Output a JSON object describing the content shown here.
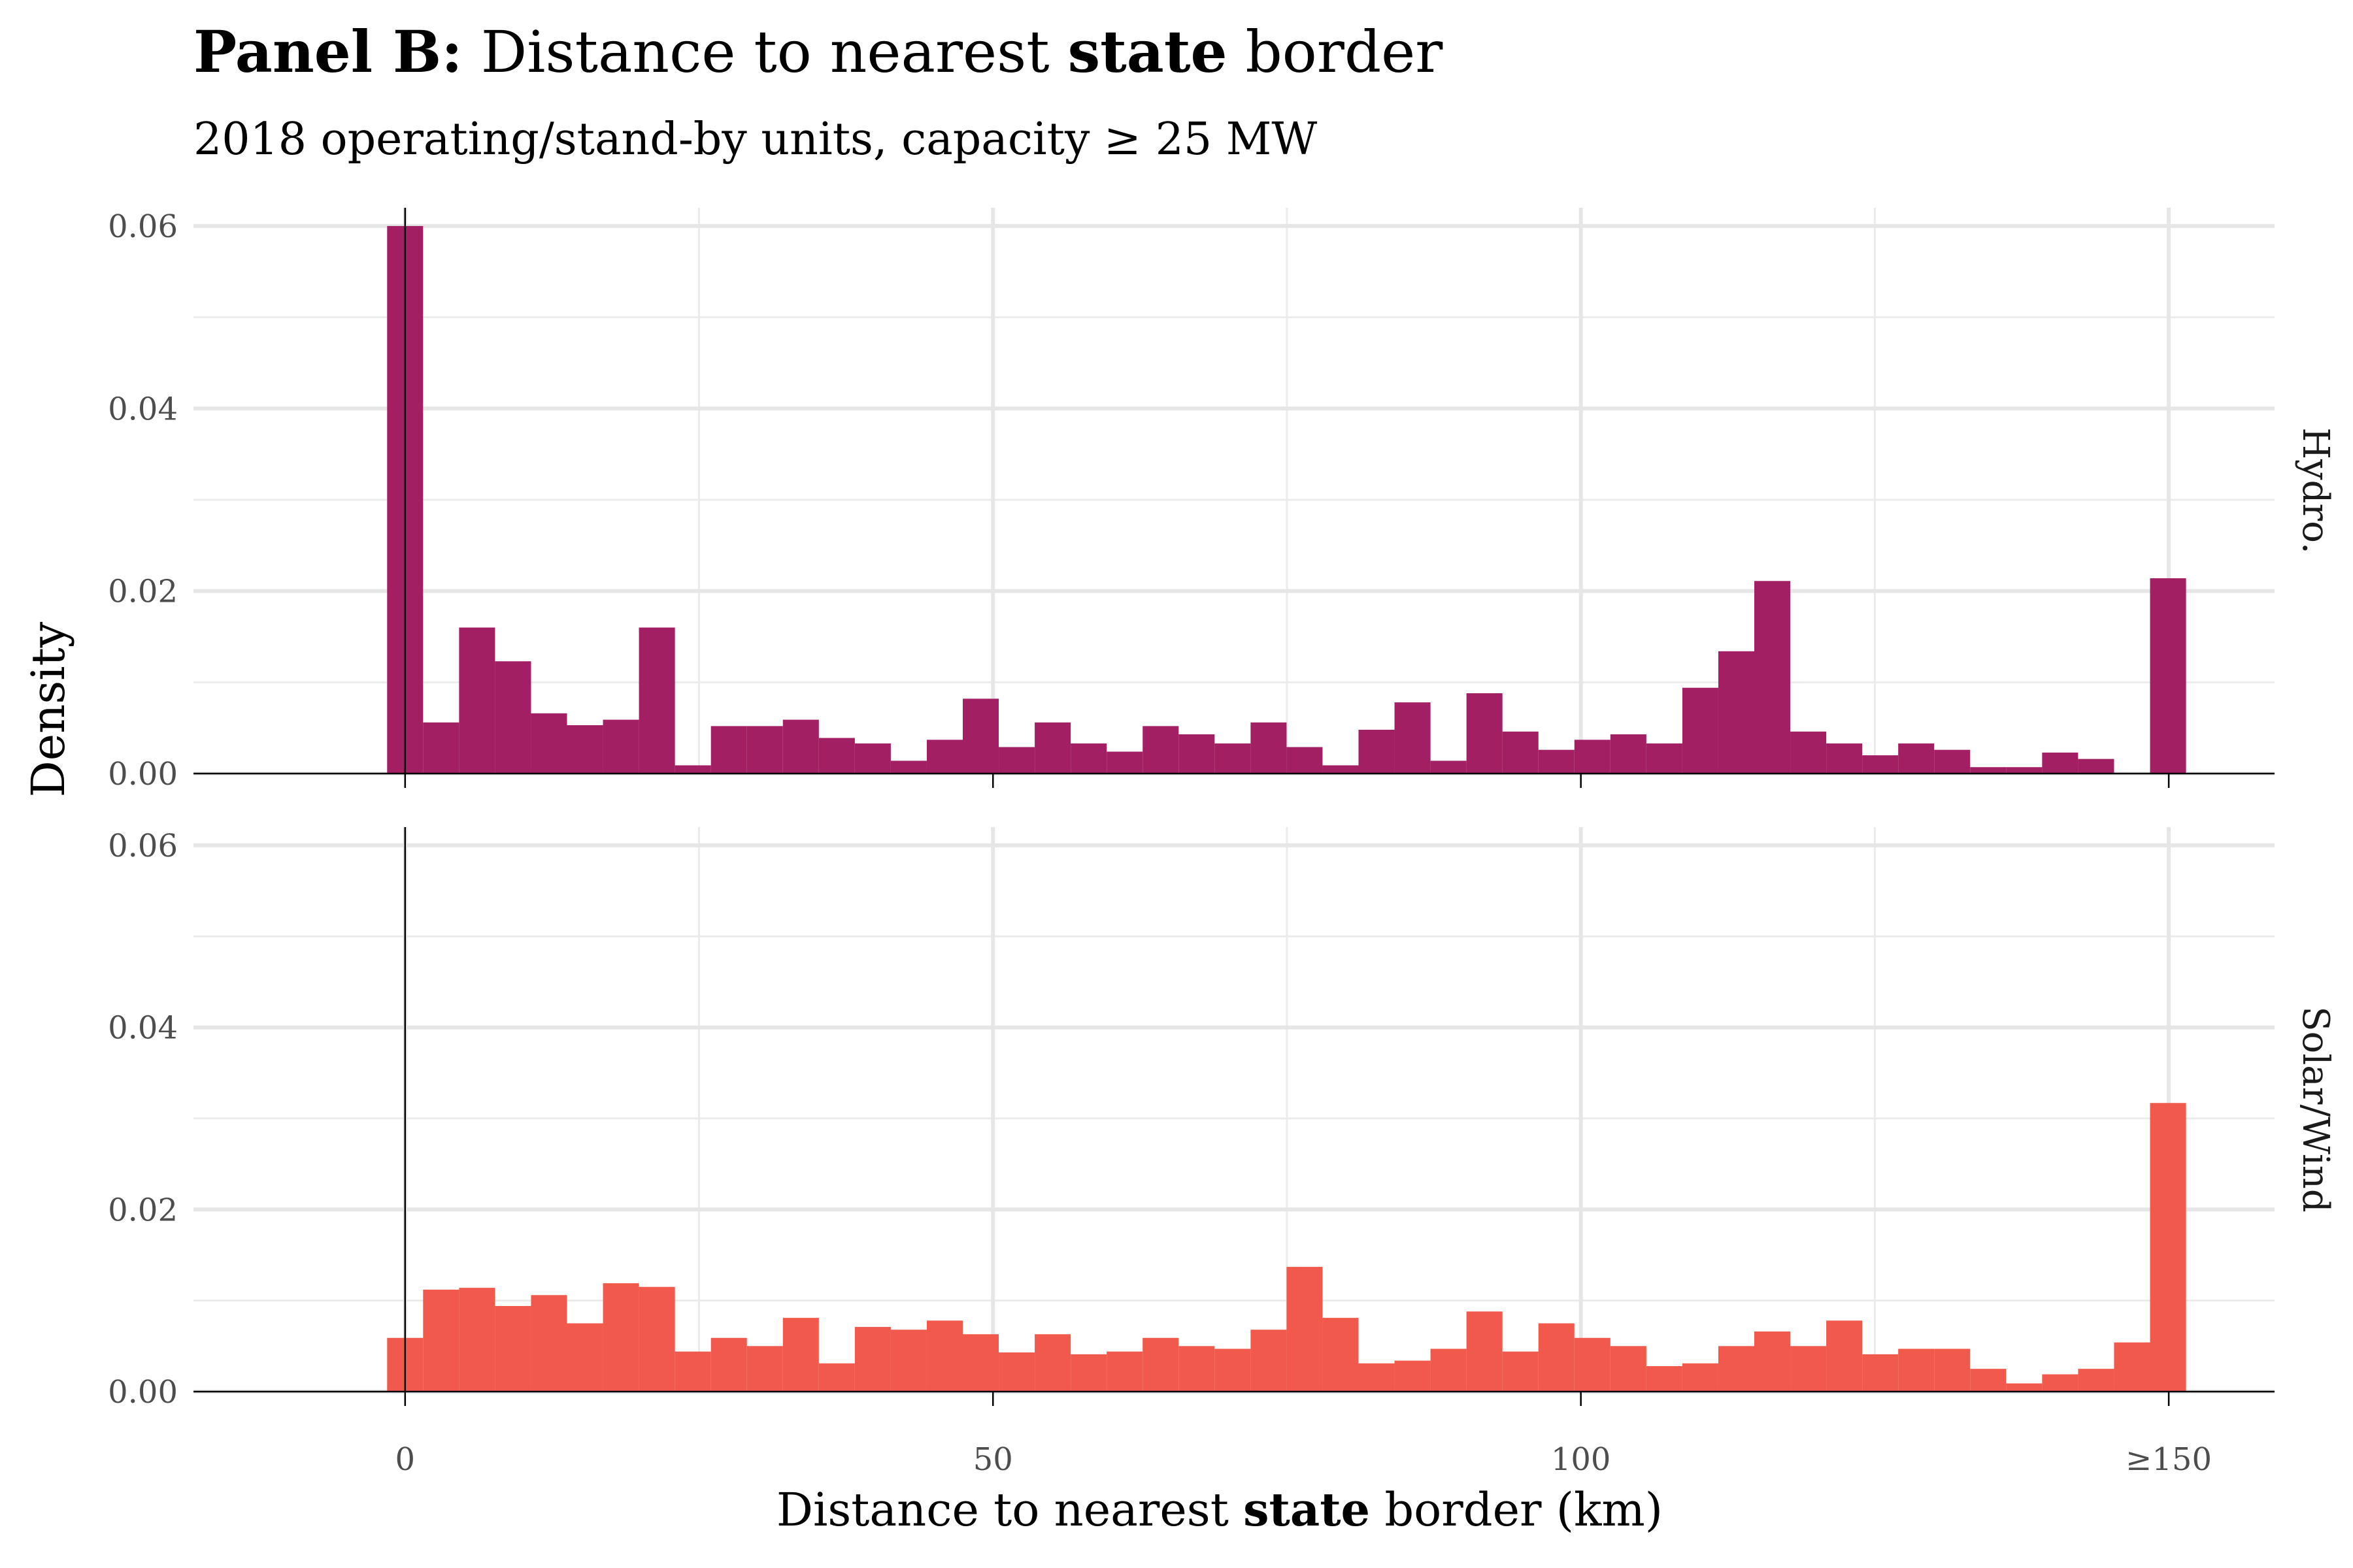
{
  "chart_data": {
    "type": "bar",
    "title": {
      "prefix": "Panel B:",
      "text_before": "Distance to nearest",
      "emphasis": "state",
      "text_after": "border"
    },
    "subtitle": "2018 operating/stand-by units, capacity  ≥ 25 MW",
    "xlabel": {
      "text_before": "Distance to nearest",
      "emphasis": "state",
      "text_after": "border (km)"
    },
    "ylabel": "Density",
    "xlim": [
      -18,
      159
    ],
    "ylim": [
      0,
      0.062
    ],
    "x_ticks": [
      {
        "value": 0,
        "label": "0"
      },
      {
        "value": 50,
        "label": "50"
      },
      {
        "value": 100,
        "label": "100"
      },
      {
        "value": 150,
        "label": "≥150"
      }
    ],
    "x_minor_ticks": [
      25,
      75,
      125
    ],
    "y_ticks": [
      {
        "value": 0,
        "label": "0.00"
      },
      {
        "value": 0.02,
        "label": "0.02"
      },
      {
        "value": 0.04,
        "label": "0.04"
      },
      {
        "value": 0.06,
        "label": "0.06"
      }
    ],
    "y_minor_ticks": [
      0.01,
      0.03,
      0.05
    ],
    "grid": true,
    "bin_width": 3.06,
    "bin_centers": [
      0,
      3.06,
      6.12,
      9.18,
      12.24,
      15.3,
      18.36,
      21.42,
      24.48,
      27.54,
      30.6,
      33.66,
      36.72,
      39.78,
      42.84,
      45.9,
      48.96,
      52.02,
      55.08,
      58.14,
      61.2,
      64.26,
      67.32,
      70.38,
      73.44,
      76.5,
      79.56,
      82.62,
      85.68,
      88.74,
      91.8,
      94.86,
      97.92,
      100.98,
      104.04,
      107.1,
      110.16,
      113.22,
      116.28,
      119.34,
      122.4,
      125.46,
      128.52,
      131.58,
      134.64,
      137.7,
      140.76,
      143.82,
      146.88,
      149.94
    ],
    "panels": [
      {
        "name": "Hydro.",
        "color": "#A31F63",
        "values": [
          0.06,
          0.0056,
          0.016,
          0.0123,
          0.0066,
          0.0053,
          0.0059,
          0.016,
          0.0009,
          0.0052,
          0.0052,
          0.0059,
          0.0039,
          0.0033,
          0.0014,
          0.0037,
          0.0082,
          0.0029,
          0.0056,
          0.0033,
          0.0024,
          0.0052,
          0.0043,
          0.0033,
          0.0056,
          0.0029,
          0.0009,
          0.0048,
          0.0078,
          0.0014,
          0.0088,
          0.0046,
          0.0026,
          0.0037,
          0.0043,
          0.0033,
          0.0094,
          0.0134,
          0.0211,
          0.0046,
          0.0033,
          0.002,
          0.0033,
          0.0026,
          0.0007,
          0.0007,
          0.0023,
          0.0016,
          0,
          0.0214
        ]
      },
      {
        "name": "Solar/Wind",
        "color": "#F0594B",
        "values": [
          0.0059,
          0.0112,
          0.0114,
          0.0094,
          0.0106,
          0.0075,
          0.0119,
          0.0115,
          0.0044,
          0.0059,
          0.005,
          0.0081,
          0.0031,
          0.0071,
          0.0068,
          0.0078,
          0.0063,
          0.0043,
          0.0063,
          0.0041,
          0.0044,
          0.0059,
          0.005,
          0.0047,
          0.0068,
          0.0137,
          0.0081,
          0.0031,
          0.0034,
          0.0047,
          0.0088,
          0.0044,
          0.0075,
          0.0059,
          0.005,
          0.0028,
          0.0031,
          0.005,
          0.0066,
          0.005,
          0.0078,
          0.0041,
          0.0047,
          0.0047,
          0.0025,
          0.0009,
          0.0019,
          0.0025,
          0.0054,
          0.0317
        ]
      }
    ]
  }
}
